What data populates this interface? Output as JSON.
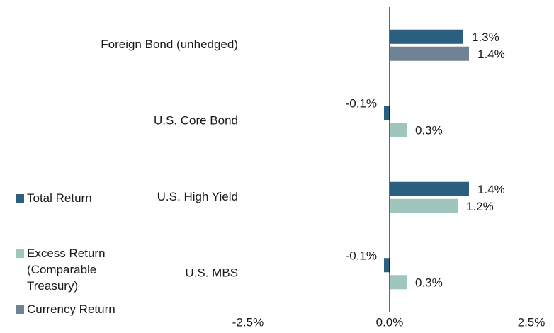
{
  "chart_data": {
    "type": "bar",
    "orientation": "horizontal",
    "categories": [
      "Foreign Bond (unhedged)",
      "U.S. Core Bond",
      "U.S. High Yield",
      "U.S. MBS"
    ],
    "series": [
      {
        "name": "Total Return",
        "color": "#2a5f7f",
        "values": [
          1.3,
          -0.1,
          1.4,
          -0.1
        ],
        "value_labels": [
          "1.3%",
          "-0.1%",
          "1.4%",
          "-0.1%"
        ]
      },
      {
        "name": "Excess Return (Comparable Treasury)",
        "color": "#9fc5bd",
        "values": [
          null,
          0.3,
          1.2,
          0.3
        ],
        "value_labels": [
          null,
          "0.3%",
          "1.2%",
          "0.3%"
        ]
      },
      {
        "name": "Currency Return",
        "color": "#6f8394",
        "values": [
          1.4,
          null,
          null,
          null
        ],
        "value_labels": [
          "1.4%",
          null,
          null,
          null
        ]
      }
    ],
    "xlim": [
      -2.5,
      2.5
    ],
    "xticks": [
      {
        "value": -2.5,
        "label": "-2.5%"
      },
      {
        "value": 0,
        "label": "0.0%"
      },
      {
        "value": 2.5,
        "label": "2.5%"
      }
    ],
    "legend": "left"
  }
}
